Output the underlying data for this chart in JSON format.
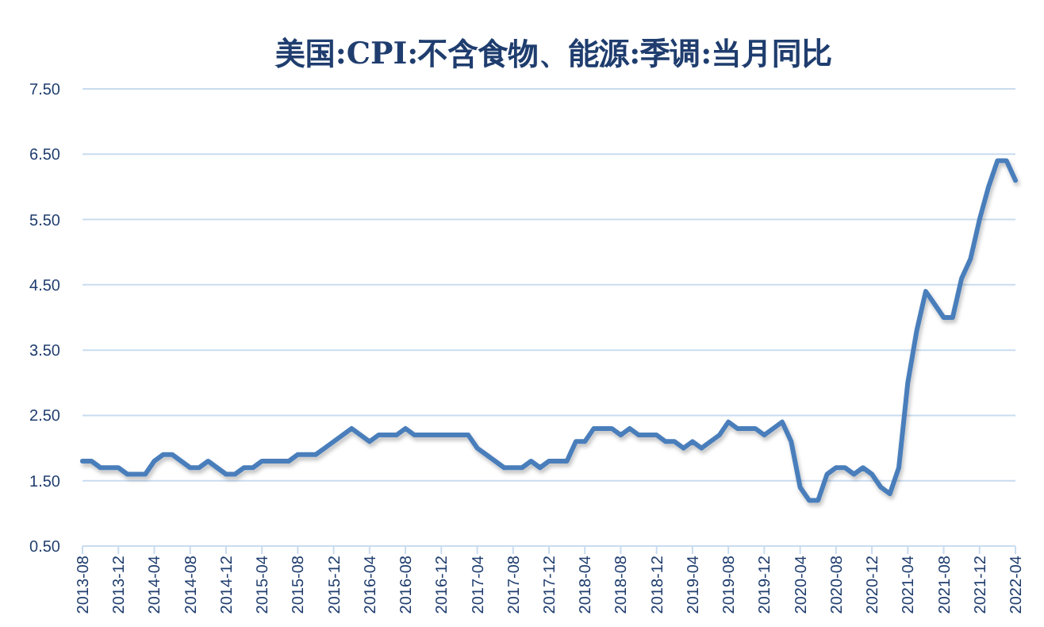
{
  "chart_data": {
    "type": "line",
    "title": "美国:CPI:不含食物、能源:季调:当月同比",
    "categories": [
      "2013-08",
      null,
      null,
      null,
      "2013-12",
      null,
      null,
      null,
      "2014-04",
      null,
      null,
      null,
      "2014-08",
      null,
      null,
      null,
      "2014-12",
      null,
      null,
      null,
      "2015-04",
      null,
      null,
      null,
      "2015-08",
      null,
      null,
      null,
      "2015-12",
      null,
      null,
      null,
      "2016-04",
      null,
      null,
      null,
      "2016-08",
      null,
      null,
      null,
      "2016-12",
      null,
      null,
      null,
      "2017-04",
      null,
      null,
      null,
      "2017-08",
      null,
      null,
      null,
      "2017-12",
      null,
      null,
      null,
      "2018-04",
      null,
      null,
      null,
      "2018-08",
      null,
      null,
      null,
      "2018-12",
      null,
      null,
      null,
      "2019-04",
      null,
      null,
      null,
      "2019-08",
      null,
      null,
      null,
      "2019-12",
      null,
      null,
      null,
      "2020-04",
      null,
      null,
      null,
      "2020-08",
      null,
      null,
      null,
      "2020-12",
      null,
      null,
      null,
      "2021-04",
      null,
      null,
      null,
      "2021-08",
      null,
      null,
      null,
      "2021-12",
      null,
      null,
      null,
      "2022-04"
    ],
    "series": [
      {
        "color": "#4a7ebb",
        "values": [
          1.8,
          1.8,
          1.7,
          1.7,
          1.7,
          1.6,
          1.6,
          1.6,
          1.8,
          1.9,
          1.9,
          1.8,
          1.7,
          1.7,
          1.8,
          1.7,
          1.6,
          1.6,
          1.7,
          1.7,
          1.8,
          1.8,
          1.8,
          1.8,
          1.9,
          1.9,
          1.9,
          2.0,
          2.1,
          2.2,
          2.3,
          2.2,
          2.1,
          2.2,
          2.2,
          2.2,
          2.3,
          2.2,
          2.2,
          2.2,
          2.2,
          2.2,
          2.2,
          2.2,
          2.0,
          1.9,
          1.8,
          1.7,
          1.7,
          1.7,
          1.8,
          1.7,
          1.8,
          1.8,
          1.8,
          2.1,
          2.1,
          2.3,
          2.3,
          2.3,
          2.2,
          2.3,
          2.2,
          2.2,
          2.2,
          2.1,
          2.1,
          2.0,
          2.1,
          2.0,
          2.1,
          2.2,
          2.4,
          2.3,
          2.3,
          2.3,
          2.2,
          2.3,
          2.4,
          2.1,
          1.4,
          1.2,
          1.2,
          1.6,
          1.7,
          1.7,
          1.6,
          1.7,
          1.6,
          1.4,
          1.3,
          1.7,
          3.0,
          3.8,
          4.4,
          4.2,
          4.0,
          4.0,
          4.6,
          4.9,
          5.5,
          6.0,
          6.4,
          6.4,
          6.1
        ]
      }
    ],
    "ylim": [
      0.5,
      7.5
    ],
    "yticks": [
      {
        "value": 0.5,
        "label": "0.50"
      },
      {
        "value": 1.5,
        "label": "1.50"
      },
      {
        "value": 2.5,
        "label": "2.50"
      },
      {
        "value": 3.5,
        "label": "3.50"
      },
      {
        "value": 4.5,
        "label": "4.50"
      },
      {
        "value": 5.5,
        "label": "5.50"
      },
      {
        "value": 6.5,
        "label": "6.50"
      },
      {
        "value": 7.5,
        "label": "7.50"
      }
    ],
    "grid": "y",
    "marker": "none",
    "line_style": "solid"
  }
}
